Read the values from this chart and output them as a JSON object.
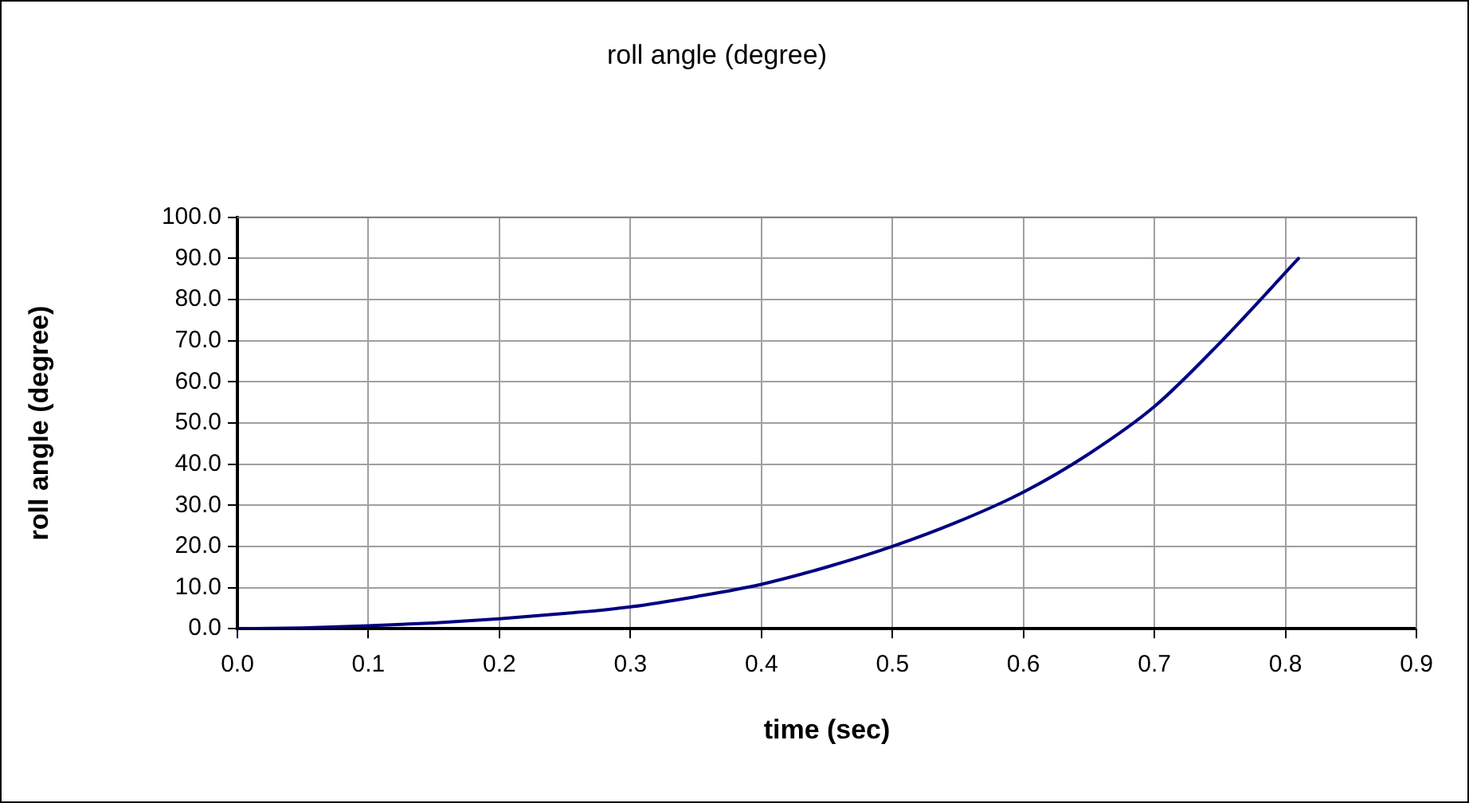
{
  "chart_data": {
    "type": "line",
    "title": "roll angle (degree)",
    "xlabel": "time (sec)",
    "ylabel": "roll angle (degree)",
    "x": [
      0,
      0.05,
      0.1,
      0.15,
      0.2,
      0.25,
      0.3,
      0.35,
      0.4,
      0.45,
      0.5,
      0.55,
      0.6,
      0.65,
      0.7,
      0.75,
      0.81
    ],
    "series": [
      {
        "color": "#000080",
        "values": [
          0,
          0.2,
          0.7,
          1.4,
          2.4,
          3.7,
          5.3,
          7.8,
          10.8,
          15,
          20,
          26,
          33.2,
          42.5,
          54,
          69.5,
          90
        ]
      }
    ],
    "xlim": [
      0,
      0.9
    ],
    "ylim": [
      0,
      100
    ],
    "xticks": [
      {
        "value": 0,
        "label": "0.0"
      },
      {
        "value": 0.1,
        "label": "0.1"
      },
      {
        "value": 0.2,
        "label": "0.2"
      },
      {
        "value": 0.3,
        "label": "0.3"
      },
      {
        "value": 0.4,
        "label": "0.4"
      },
      {
        "value": 0.5,
        "label": "0.5"
      },
      {
        "value": 0.6,
        "label": "0.6"
      },
      {
        "value": 0.7,
        "label": "0.7"
      },
      {
        "value": 0.8,
        "label": "0.8"
      },
      {
        "value": 0.9,
        "label": "0.9"
      }
    ],
    "yticks": [
      {
        "value": 0,
        "label": "0.0"
      },
      {
        "value": 10,
        "label": "10.0"
      },
      {
        "value": 20,
        "label": "20.0"
      },
      {
        "value": 30,
        "label": "30.0"
      },
      {
        "value": 40,
        "label": "40.0"
      },
      {
        "value": 50,
        "label": "50.0"
      },
      {
        "value": 60,
        "label": "60.0"
      },
      {
        "value": 70,
        "label": "70.0"
      },
      {
        "value": 80,
        "label": "80.0"
      },
      {
        "value": 90,
        "label": "90.0"
      },
      {
        "value": 100,
        "label": "100.0"
      }
    ],
    "grid": true,
    "legend": false,
    "marker": "none",
    "line_style": "solid"
  }
}
